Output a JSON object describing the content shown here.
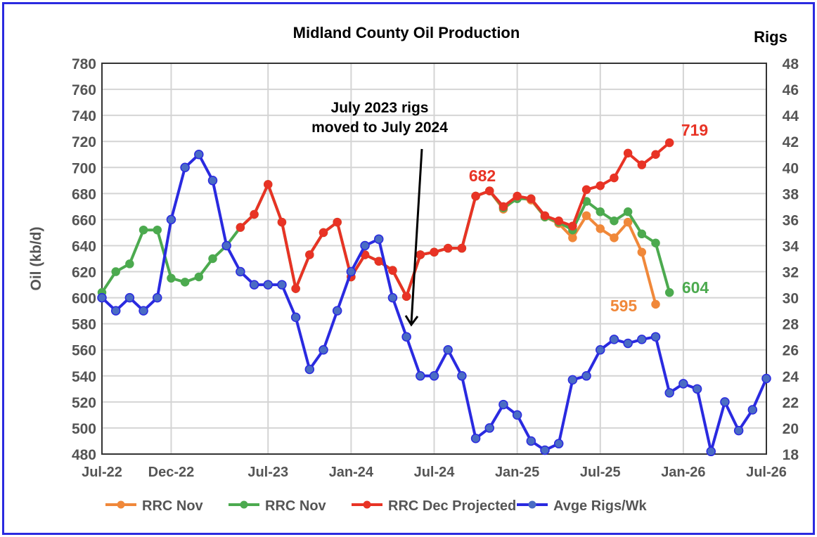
{
  "chart_data": {
    "type": "line",
    "title": "Midland County Oil Production",
    "ylabel": "Oil (kb/d)",
    "y2label": "Rigs",
    "ylim": [
      480,
      780
    ],
    "y2lim": [
      18,
      48
    ],
    "yticks": [
      480,
      500,
      520,
      540,
      560,
      580,
      600,
      620,
      640,
      660,
      680,
      700,
      720,
      740,
      760,
      780
    ],
    "y2ticks": [
      18,
      20,
      22,
      24,
      26,
      28,
      30,
      32,
      34,
      36,
      38,
      40,
      42,
      44,
      46,
      48
    ],
    "xticks": [
      "Jul-22",
      "Dec-22",
      "Jul-23",
      "Jan-24",
      "Jul-24",
      "Jan-25",
      "Jul-25",
      "Jan-26",
      "Jul-26"
    ],
    "xtick_months": [
      0,
      5,
      12,
      18,
      24,
      30,
      36,
      42,
      48
    ],
    "x_start": "Jul-22",
    "grid": true,
    "legend_position": "bottom",
    "series": [
      {
        "name": "RRC Nov",
        "color": "#f0883a",
        "axis": "left",
        "start_month": 18,
        "values": [
          616,
          633,
          628,
          621,
          601,
          633,
          635,
          638,
          638,
          678,
          682,
          668,
          677,
          675,
          662,
          657,
          646,
          663,
          653,
          646,
          658,
          635,
          595
        ]
      },
      {
        "name": "RRC Nov",
        "color": "#4caa4f",
        "axis": "left",
        "start_month": 0,
        "values": [
          604,
          620,
          626,
          652,
          652,
          615,
          612,
          616,
          630,
          640,
          654,
          664,
          687,
          658,
          607,
          633,
          650,
          658,
          616,
          633,
          628,
          621,
          601,
          633,
          635,
          638,
          638,
          678,
          682,
          669,
          676,
          676,
          662,
          658,
          652,
          674,
          666,
          659,
          666,
          649,
          642,
          604
        ]
      },
      {
        "name": "RRC Dec Projected",
        "color": "#e83325",
        "axis": "left",
        "start_month": 10,
        "values": [
          654,
          664,
          687,
          658,
          607,
          633,
          650,
          658,
          616,
          633,
          628,
          621,
          601,
          633,
          635,
          638,
          638,
          678,
          682,
          670,
          678,
          676,
          663,
          659,
          655,
          683,
          686,
          692,
          711,
          702,
          710,
          719
        ]
      },
      {
        "name": "Avge Rigs/Wk",
        "color": "#2a2ae0",
        "axis": "right",
        "start_month": 0,
        "values": [
          30,
          29,
          30,
          29,
          30,
          36,
          40,
          41,
          39,
          34,
          32,
          31,
          31,
          31,
          28.5,
          24.5,
          26,
          29,
          32,
          34,
          34.5,
          30,
          27,
          24,
          24,
          26,
          24,
          19.2,
          20,
          21.8,
          21,
          19,
          18.3,
          18.8,
          23.7,
          24,
          26,
          26.8,
          26.5,
          26.8,
          27,
          22.7,
          23.4,
          23,
          18.2,
          22,
          19.8,
          21.4,
          23.8
        ]
      }
    ],
    "annotations": [
      {
        "text": "682",
        "color": "#e83325"
      },
      {
        "text": "719",
        "color": "#e83325"
      },
      {
        "text": "595",
        "color": "#f0883a"
      },
      {
        "text": "604",
        "color": "#4caa4f"
      },
      {
        "text_line1": "July 2023 rigs",
        "text_line2": "moved to July 2024",
        "color": "#000000"
      }
    ]
  }
}
